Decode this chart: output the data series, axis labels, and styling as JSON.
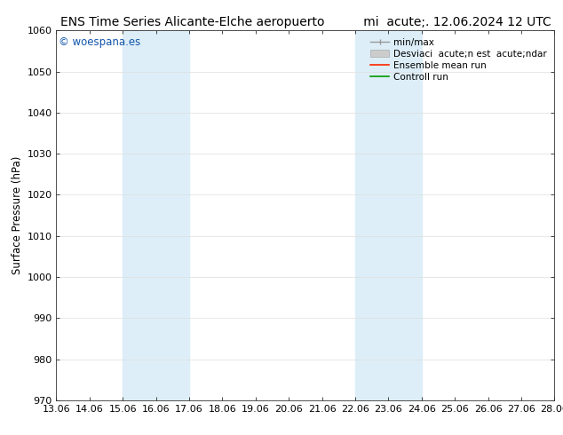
{
  "title_left": "ENS Time Series Alicante-Elche aeropuerto",
  "title_right": "mi  acute;. 12.06.2024 12 UTC",
  "ylabel": "Surface Pressure (hPa)",
  "ylim": [
    970,
    1060
  ],
  "yticks": [
    970,
    980,
    990,
    1000,
    1010,
    1020,
    1030,
    1040,
    1050,
    1060
  ],
  "xlim": [
    0,
    15
  ],
  "xtick_labels": [
    "13.06",
    "14.06",
    "15.06",
    "16.06",
    "17.06",
    "18.06",
    "19.06",
    "20.06",
    "21.06",
    "22.06",
    "23.06",
    "24.06",
    "25.06",
    "26.06",
    "27.06",
    "28.06"
  ],
  "xtick_positions": [
    0,
    1,
    2,
    3,
    4,
    5,
    6,
    7,
    8,
    9,
    10,
    11,
    12,
    13,
    14,
    15
  ],
  "shaded_bands": [
    {
      "xmin": 2,
      "xmax": 4,
      "color": "#ddeef8"
    },
    {
      "xmin": 9,
      "xmax": 11,
      "color": "#ddeef8"
    }
  ],
  "watermark": "© woespana.es",
  "watermark_color": "#1155aa",
  "legend_labels": [
    "min/max",
    "Desviaci  acute;n est  acute;ndar",
    "Ensemble mean run",
    "Controll run"
  ],
  "legend_line_colors": [
    "#aaaaaa",
    "#cccccc",
    "#ff2200",
    "#009900"
  ],
  "background_color": "#ffffff",
  "plot_bg_color": "#ffffff",
  "grid_color": "#dddddd",
  "title_fontsize": 10,
  "tick_fontsize": 8,
  "ylabel_fontsize": 8.5
}
